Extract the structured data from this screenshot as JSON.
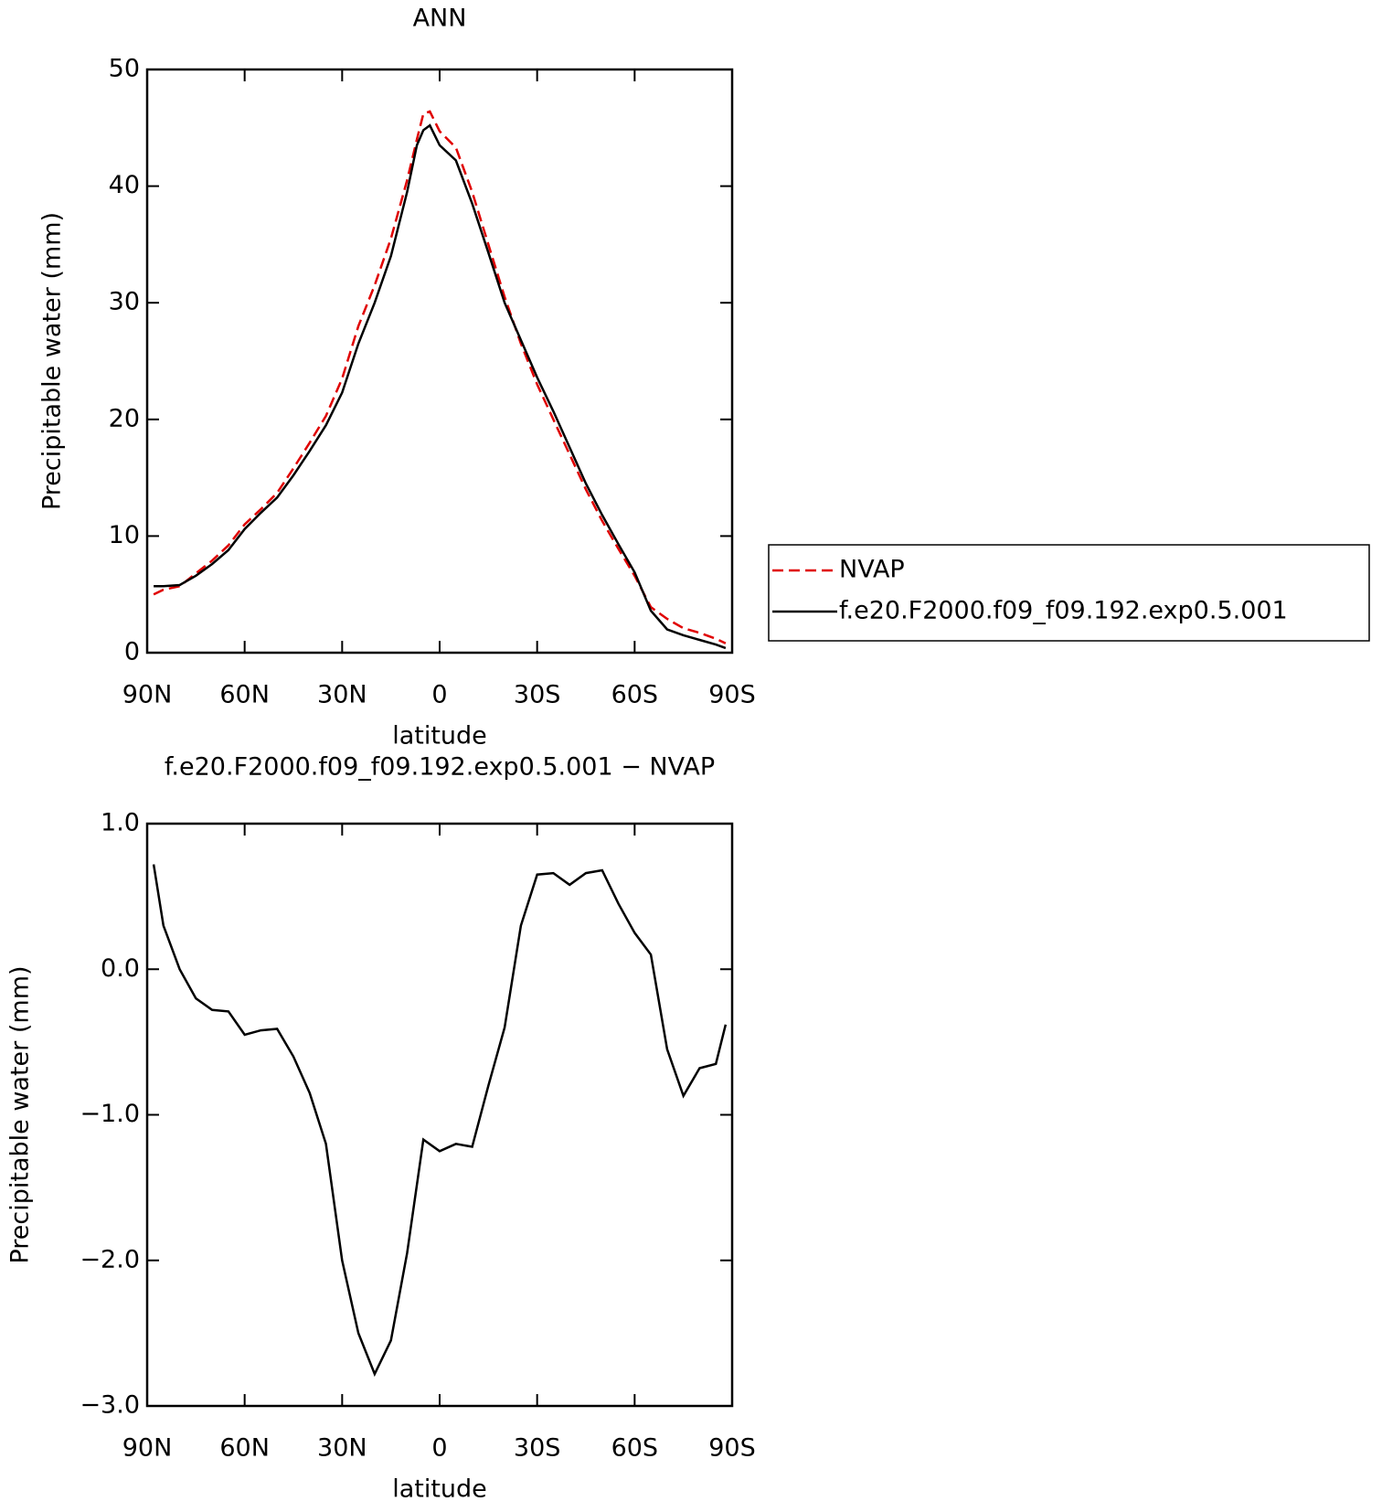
{
  "chart_data": [
    {
      "type": "line",
      "title": "ANN",
      "xlabel": "latitude",
      "ylabel": "Precipitable water (mm)",
      "x": [
        88,
        85,
        80,
        75,
        70,
        65,
        60,
        55,
        50,
        45,
        40,
        35,
        30,
        25,
        20,
        15,
        10,
        7,
        5,
        3,
        0,
        -5,
        -10,
        -15,
        -20,
        -25,
        -30,
        -35,
        -40,
        -45,
        -50,
        -55,
        -60,
        -65,
        -70,
        -75,
        -80,
        -85,
        -88
      ],
      "series": [
        {
          "name": "NVAP",
          "color": "#e00000",
          "style": "dashed",
          "values": [
            5.0,
            5.4,
            5.7,
            6.8,
            7.9,
            9.2,
            11.0,
            12.3,
            13.7,
            15.8,
            18.0,
            20.3,
            23.5,
            28.0,
            31.5,
            35.5,
            40.5,
            44.0,
            46.2,
            46.4,
            44.7,
            43.3,
            39.5,
            35.0,
            30.5,
            26.5,
            23.0,
            20.0,
            17.0,
            14.0,
            11.3,
            8.9,
            6.6,
            3.9,
            2.9,
            2.1,
            1.7,
            1.2,
            0.8
          ]
        },
        {
          "name": "f.e20.F2000.f09_f09.192.exp0.5.001",
          "color": "#000000",
          "style": "solid",
          "values": [
            5.7,
            5.7,
            5.8,
            6.6,
            7.6,
            8.8,
            10.6,
            12.0,
            13.3,
            15.2,
            17.3,
            19.5,
            22.3,
            26.5,
            30.0,
            34.0,
            39.5,
            43.5,
            44.8,
            45.2,
            43.5,
            42.2,
            38.5,
            34.3,
            30.0,
            26.8,
            23.6,
            20.7,
            17.6,
            14.5,
            11.8,
            9.3,
            6.9,
            3.6,
            2.0,
            1.5,
            1.1,
            0.7,
            0.4
          ]
        }
      ],
      "xlim": [
        90,
        -90
      ],
      "xticks": [
        {
          "value": 90,
          "label": "90N"
        },
        {
          "value": 60,
          "label": "60N"
        },
        {
          "value": 30,
          "label": "30N"
        },
        0,
        {
          "value": -30,
          "label": "30S"
        },
        {
          "value": -60,
          "label": "60S"
        },
        {
          "value": -90,
          "label": "90S"
        }
      ],
      "ylim": [
        0,
        50
      ],
      "yticks": [
        0,
        10,
        20,
        30,
        40,
        50
      ],
      "legend": "right"
    },
    {
      "type": "line",
      "title": "f.e20.F2000.f09_f09.192.exp0.5.001 − NVAP",
      "xlabel": "latitude",
      "ylabel": "Precipitable water (mm)",
      "x": [
        88,
        85,
        80,
        75,
        70,
        65,
        60,
        55,
        50,
        45,
        40,
        35,
        30,
        25,
        20,
        15,
        10,
        5,
        0,
        -5,
        -10,
        -15,
        -20,
        -25,
        -30,
        -35,
        -40,
        -45,
        -50,
        -55,
        -60,
        -65,
        -70,
        -75,
        -80,
        -85,
        -88
      ],
      "series": [
        {
          "name": "f.e20.F2000.f09_f09.192.exp0.5.001 − NVAP",
          "color": "#000000",
          "style": "solid",
          "values": [
            0.72,
            0.3,
            0.0,
            -0.2,
            -0.28,
            -0.29,
            -0.45,
            -0.42,
            -0.41,
            -0.6,
            -0.85,
            -1.2,
            -2.0,
            -2.5,
            -2.78,
            -2.55,
            -1.95,
            -1.17,
            -1.25,
            -1.2,
            -1.22,
            -0.8,
            -0.4,
            0.3,
            0.65,
            0.66,
            0.58,
            0.66,
            0.68,
            0.45,
            0.25,
            0.1,
            -0.55,
            -0.87,
            -0.68,
            -0.65,
            -0.38
          ]
        }
      ],
      "xlim": [
        90,
        -90
      ],
      "xticks": [
        {
          "value": 90,
          "label": "90N"
        },
        {
          "value": 60,
          "label": "60N"
        },
        {
          "value": 30,
          "label": "30N"
        },
        0,
        {
          "value": -30,
          "label": "30S"
        },
        {
          "value": -60,
          "label": "60S"
        },
        {
          "value": -90,
          "label": "90S"
        }
      ],
      "ylim": [
        -3,
        1
      ],
      "yticks": [
        {
          "value": -3,
          "label": "−3.0"
        },
        {
          "value": -2,
          "label": "−2.0"
        },
        {
          "value": -1,
          "label": "−1.0"
        },
        {
          "value": 0,
          "label": "0.0"
        },
        {
          "value": 1,
          "label": "1.0"
        }
      ]
    }
  ]
}
